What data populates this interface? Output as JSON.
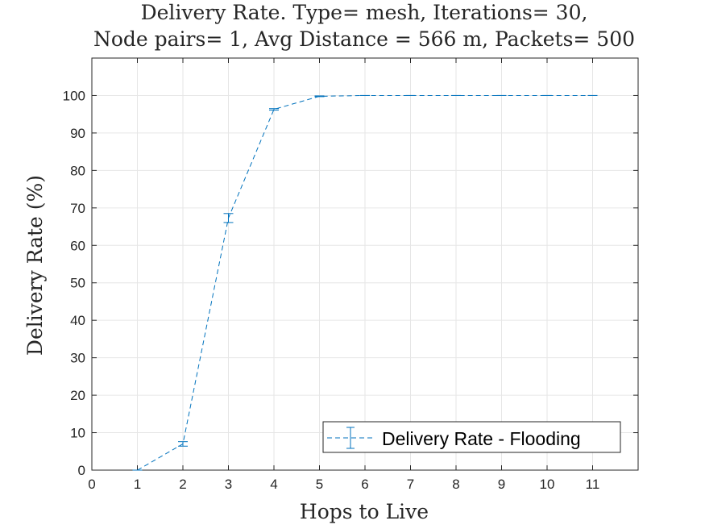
{
  "chart_data": {
    "type": "line",
    "title": [
      "Delivery Rate. Type= mesh, Iterations= 30,",
      "Node pairs= 1, Avg Distance = 566 m, Packets= 500"
    ],
    "xlabel": "Hops to Live",
    "ylabel": "Delivery Rate (%)",
    "xlim": [
      0,
      12
    ],
    "ylim": [
      0,
      110
    ],
    "xticks": [
      0,
      1,
      2,
      3,
      4,
      5,
      6,
      7,
      8,
      9,
      10,
      11
    ],
    "yticks": [
      0,
      10,
      20,
      30,
      40,
      50,
      60,
      70,
      80,
      90,
      100
    ],
    "grid": true,
    "legend_position": "bottom-right",
    "colors": {
      "series": "#0072bd",
      "grid": "#e6e6e6",
      "axis": "#262626"
    },
    "series": [
      {
        "name": "Delivery Rate - Flooding",
        "x": [
          1,
          2,
          3,
          4,
          5,
          6,
          7,
          8,
          9,
          10,
          11
        ],
        "y": [
          0,
          7,
          67.3,
          96.3,
          99.8,
          100,
          100,
          100,
          100,
          100,
          100
        ],
        "error": [
          0,
          0.6,
          1.2,
          0.2,
          0.1,
          0,
          0,
          0,
          0,
          0,
          0
        ]
      }
    ]
  }
}
